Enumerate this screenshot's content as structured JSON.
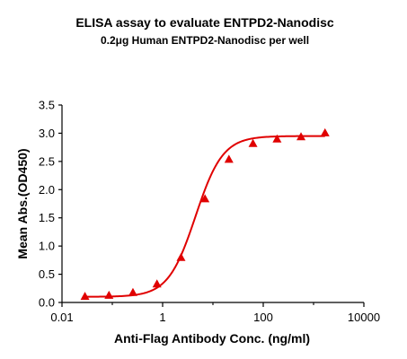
{
  "chart_data": {
    "type": "scatter",
    "title": "ELISA assay to evaluate ENTPD2-Nanodisc",
    "subtitle": "0.2μg Human ENTPD2-Nanodisc per well",
    "xlabel": "Anti-Flag Antibody Conc. (ng/ml)",
    "ylabel": "Mean Abs.(OD450)",
    "xscale": "log",
    "xlim": [
      0.01,
      10000
    ],
    "ylim": [
      0.0,
      3.5
    ],
    "x_ticks": [
      "0.01",
      "1",
      "100",
      "10000"
    ],
    "x_tick_values": [
      0.01,
      1,
      100,
      10000
    ],
    "y_ticks": [
      "0.0",
      "0.5",
      "1.0",
      "1.5",
      "2.0",
      "2.5",
      "3.0",
      "3.5"
    ],
    "y_tick_values": [
      0.0,
      0.5,
      1.0,
      1.5,
      2.0,
      2.5,
      3.0,
      3.5
    ],
    "grid": false,
    "series": [
      {
        "marker": "triangle",
        "color": "#e00000",
        "x": [
          0.0286,
          0.0858,
          0.257,
          0.772,
          2.32,
          6.95,
          20.8,
          62.5,
          188,
          563,
          1690
        ],
        "y": [
          0.1,
          0.12,
          0.17,
          0.32,
          0.79,
          1.83,
          2.53,
          2.81,
          2.89,
          2.93,
          3.0
        ]
      }
    ],
    "fit_curve": {
      "type": "4PL",
      "color": "#e00000",
      "bottom": 0.1,
      "top": 2.95,
      "ec50": 4.5,
      "hill": 1.6
    }
  }
}
